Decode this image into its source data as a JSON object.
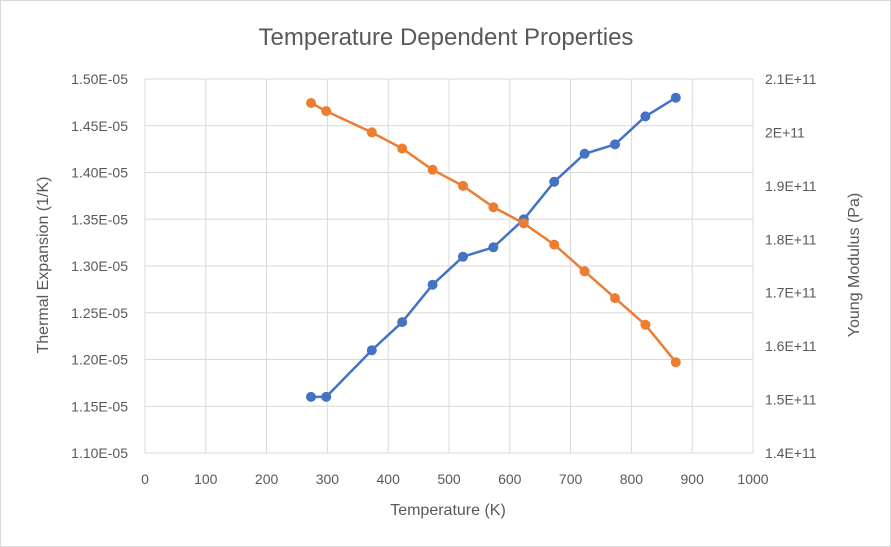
{
  "chart_data": {
    "type": "line",
    "title": "Temperature Dependent Properties",
    "xlabel": "Temperature (K)",
    "ylabel": "Thermal Expansion (1/K)",
    "y2label": "Young Modulus (Pa)",
    "xlim": [
      0,
      1000
    ],
    "ylim": [
      1.1e-05,
      1.5e-05
    ],
    "y2lim": [
      140000000000.0,
      210000000000.0
    ],
    "x_ticks": [
      "0",
      "100",
      "200",
      "300",
      "400",
      "500",
      "600",
      "700",
      "800",
      "900",
      "1000"
    ],
    "y_ticks": [
      "1.10E-05",
      "1.15E-05",
      "1.20E-05",
      "1.25E-05",
      "1.30E-05",
      "1.35E-05",
      "1.40E-05",
      "1.45E-05",
      "1.50E-05"
    ],
    "y2_ticks": [
      "1.4E+11",
      "1.5E+11",
      "1.6E+11",
      "1.7E+11",
      "1.8E+11",
      "1.9E+11",
      "2E+11",
      "2.1E+11"
    ],
    "grid": true,
    "legend": "none",
    "series": [
      {
        "axis": "left",
        "color": "#4472c4",
        "x": [
          273,
          298,
          373,
          423,
          473,
          523,
          573,
          623,
          673,
          723,
          773,
          823,
          873
        ],
        "y": [
          1.16e-05,
          1.16e-05,
          1.21e-05,
          1.24e-05,
          1.28e-05,
          1.31e-05,
          1.32e-05,
          1.35e-05,
          1.39e-05,
          1.42e-05,
          1.43e-05,
          1.46e-05,
          1.48e-05
        ]
      },
      {
        "axis": "right",
        "color": "#ed7d31",
        "x": [
          273,
          298,
          373,
          423,
          473,
          523,
          573,
          623,
          673,
          723,
          773,
          823,
          873
        ],
        "y": [
          205500000000.0,
          204000000000.0,
          200000000000.0,
          197000000000.0,
          193000000000.0,
          190000000000.0,
          186000000000.0,
          183000000000.0,
          179000000000.0,
          174000000000.0,
          169000000000.0,
          164000000000.0,
          157000000000.0
        ]
      }
    ]
  }
}
